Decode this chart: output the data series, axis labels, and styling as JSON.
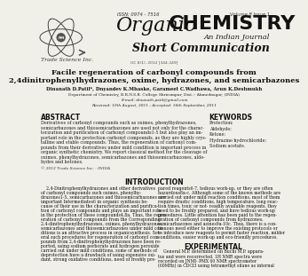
{
  "issn": "ISSN: 0974 - 7516",
  "volume": "Volume 8 Issue 1",
  "journal_title_italic": "Organic",
  "journal_title_bold": "CHEMISTRY",
  "indian_journal": "An Indian Journal",
  "short_comm": "Short Communication",
  "publisher": "Trade Science Inc.",
  "oc_ref": "OC 8(1), 2012 [344-349]",
  "paper_title_line1": "Facile regeneration of carbonyl compounds from",
  "paper_title_line2": "2,4dinitrophenylhydrazones, oxime, hydrazones, and semicarbazones",
  "authors": "Dinanath D.Patil*, Dnyandev K.Mhaske, Garameet C.Wadhawa, Arun K.Deshmukh",
  "affiliation": "Department of Chemistry, B.B.N.S.B. College Shrirampur, Dist.:- Ahmednagar, (INDIA)",
  "email": "E-mail: dinanath.patil@gmail.com",
  "received": "Received: 10th August, 2011 ; Accepted: 16th September, 2011",
  "abstract_title": "ABSTRACT",
  "keywords_title": "KEYWORDS",
  "abstract_text_lines": [
    "Derivatives of carbonyl compounds such as oximes, phenylhydrazones,",
    "semicarbazones and thiosemicarbazones are used not only for the charac-",
    "terization and purification of carbonyl compounds1-5 but also play an im-",
    "portant role in the protection carbonyl compounds, as they are highly crys-",
    "talline and stable compounds. Thus, the regeneration of carbonyl com-",
    "pounds from their derivatives under mild condition is important process in",
    "organic synthetic chemistry. We report classical method for the cleavage of",
    "oximes, phenylhydrazones, semicarbazones and thiosemicarbazones, alde-",
    "hydes and ketones."
  ],
  "abstract_footer": "© 2012 Trade Science Inc. - INDIA",
  "keywords": [
    "Protection;",
    "Aldehyde;",
    "Ketone;",
    "Hydrazine hydrochloride;",
    "Sodium acetate."
  ],
  "intro_title": "INTRODUCTION",
  "intro_col1_lines": [
    "    2,4-Dinitrophenylhydrazones and other derivatives",
    "of carbonyl compounds such oximes, phenylhy-",
    "drazones1-5, semicarbazones and thiosemicarbazones are",
    "important Intermediates6 in organic synthesis be-",
    "cause of their use in the characterization and purifica-",
    "tion of carbonyl compounds and plays an important role",
    "in the protection of these compounds4,8a. Thus, the regen-",
    "eration of carbonyl compounds from the Corresponding",
    "2,4-dinitrophenylhydrazones, oximes, phenylhydrazones,",
    "semicarbazones and thiosemicarbazones under mild con-",
    "ditions is an attractive process in organicsynthesis. Sev-",
    "eral such procedures for regeneration of carbonyl com-",
    "pounds from 2,4-dinitrophenylhydrazones have been re-",
    "ported, using sodium perborate and hydrogen peroxide",
    "carried out under mild conditions, some of methods of",
    "deprotection have a drawback of using expensive oxi-",
    "dant, strong oxidative conditions, need of freshly pre-"
  ],
  "intro_col2_lines": [
    "pared reagents6-7, tedious work-up, or they are often",
    "hazardous8a-c. Although some of the known methods are",
    "carried out under mild reaction conditions, most of them",
    "require drastic conditions, high temperature, long reac-",
    "tion times, toxic or not- readily available reagents, they",
    "need to be freshly prepared, and have tedious work-up",
    "procedures. Little attention has been paid to the regen-",
    "eration of carbonyl compounds from hydrazones,",
    "semicarbazones and azines9a-10c. Thus, there is a con-",
    "tinuous need either to improve the existing protocols or",
    "to introduce new reagents to permit faster reaction, milder",
    "conditions, easier work-up and eco-friendly procedures."
  ],
  "exp_title": "EXPERIMENTAL",
  "exp_col2_lines": [
    "    General M.P. determined on Buchi M.P. appara-",
    "tus and were recorrected. 1H NMR spectra were",
    "recorded on JNMI- PMX 60 NMR spectrometer",
    "(60MHz) in CDCl3 using tetramethyl silane as internal"
  ],
  "bg_color": "#f0efe8",
  "white": "#ffffff",
  "text_dark": "#1a1a1a",
  "text_mid": "#333333",
  "text_light": "#555555"
}
